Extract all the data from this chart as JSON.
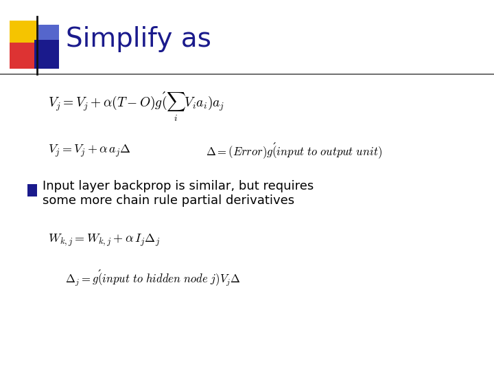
{
  "title": "Simplify as",
  "title_color": "#1a1a8c",
  "title_fontsize": 28,
  "bg_color": "#ffffff",
  "bullet_text_line1": "Input layer backprop is similar, but requires",
  "bullet_text_line2": "some more chain rule partial derivatives",
  "bullet_color": "#1a1a8c",
  "eq_color": "#000000",
  "text_color": "#000000",
  "line_color": "#555555",
  "deco_yellow": "#f5c400",
  "deco_red": "#dd3333",
  "deco_blue_dark": "#1a1a8c",
  "deco_blue_light": "#5566cc"
}
